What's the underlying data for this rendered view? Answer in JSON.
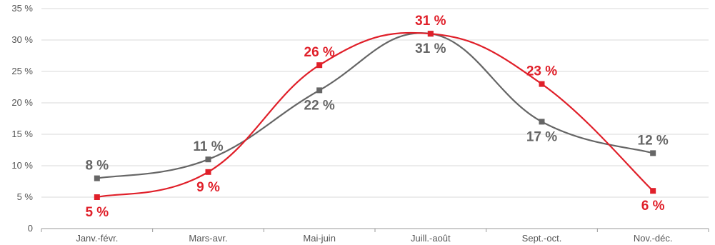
{
  "chart_data": {
    "type": "line",
    "categories": [
      "Janv.-févr.",
      "Mars-avr.",
      "Mai-juin",
      "Juill.-août",
      "Sept.-oct.",
      "Nov.-déc."
    ],
    "series": [
      {
        "values": [
          8,
          11,
          22,
          31,
          17,
          12
        ],
        "labels": [
          "8 %",
          "11 %",
          "22 %",
          "31 %",
          "17 %",
          "12 %"
        ],
        "color": "#666666",
        "label_position": [
          "above",
          "above",
          "below",
          "below",
          "below",
          "above"
        ]
      },
      {
        "values": [
          5,
          9,
          26,
          31,
          23,
          6
        ],
        "labels": [
          "5 %",
          "9 %",
          "26 %",
          "31 %",
          "23 %",
          "6 %"
        ],
        "color": "#e0202a",
        "label_position": [
          "below",
          "below",
          "above",
          "above",
          "above",
          "below"
        ]
      }
    ],
    "y_ticks": [
      "0",
      "5 %",
      "10 %",
      "15 %",
      "20 %",
      "25 %",
      "30 %",
      "35 %"
    ],
    "ylim": [
      0,
      35
    ],
    "grid": true,
    "smooth": true,
    "marker": "square",
    "legend": "none"
  }
}
